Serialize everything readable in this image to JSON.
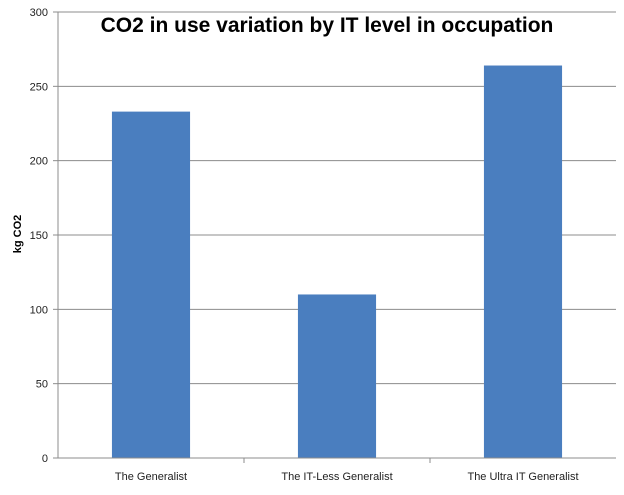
{
  "chart_data": {
    "type": "bar",
    "title": "CO2 in use variation by IT level in occupation",
    "xlabel": "",
    "ylabel": "kg CO2",
    "categories": [
      "The Generalist",
      "The IT-Less Generalist",
      "The Ultra IT Generalist"
    ],
    "values": [
      233,
      110,
      264
    ],
    "ylim": [
      0,
      300
    ],
    "yticks": [
      0,
      50,
      100,
      150,
      200,
      250,
      300
    ],
    "grid": true,
    "legend": "none",
    "bar_color": "#4a7ebf",
    "grid_color": "#8c8c8c"
  }
}
